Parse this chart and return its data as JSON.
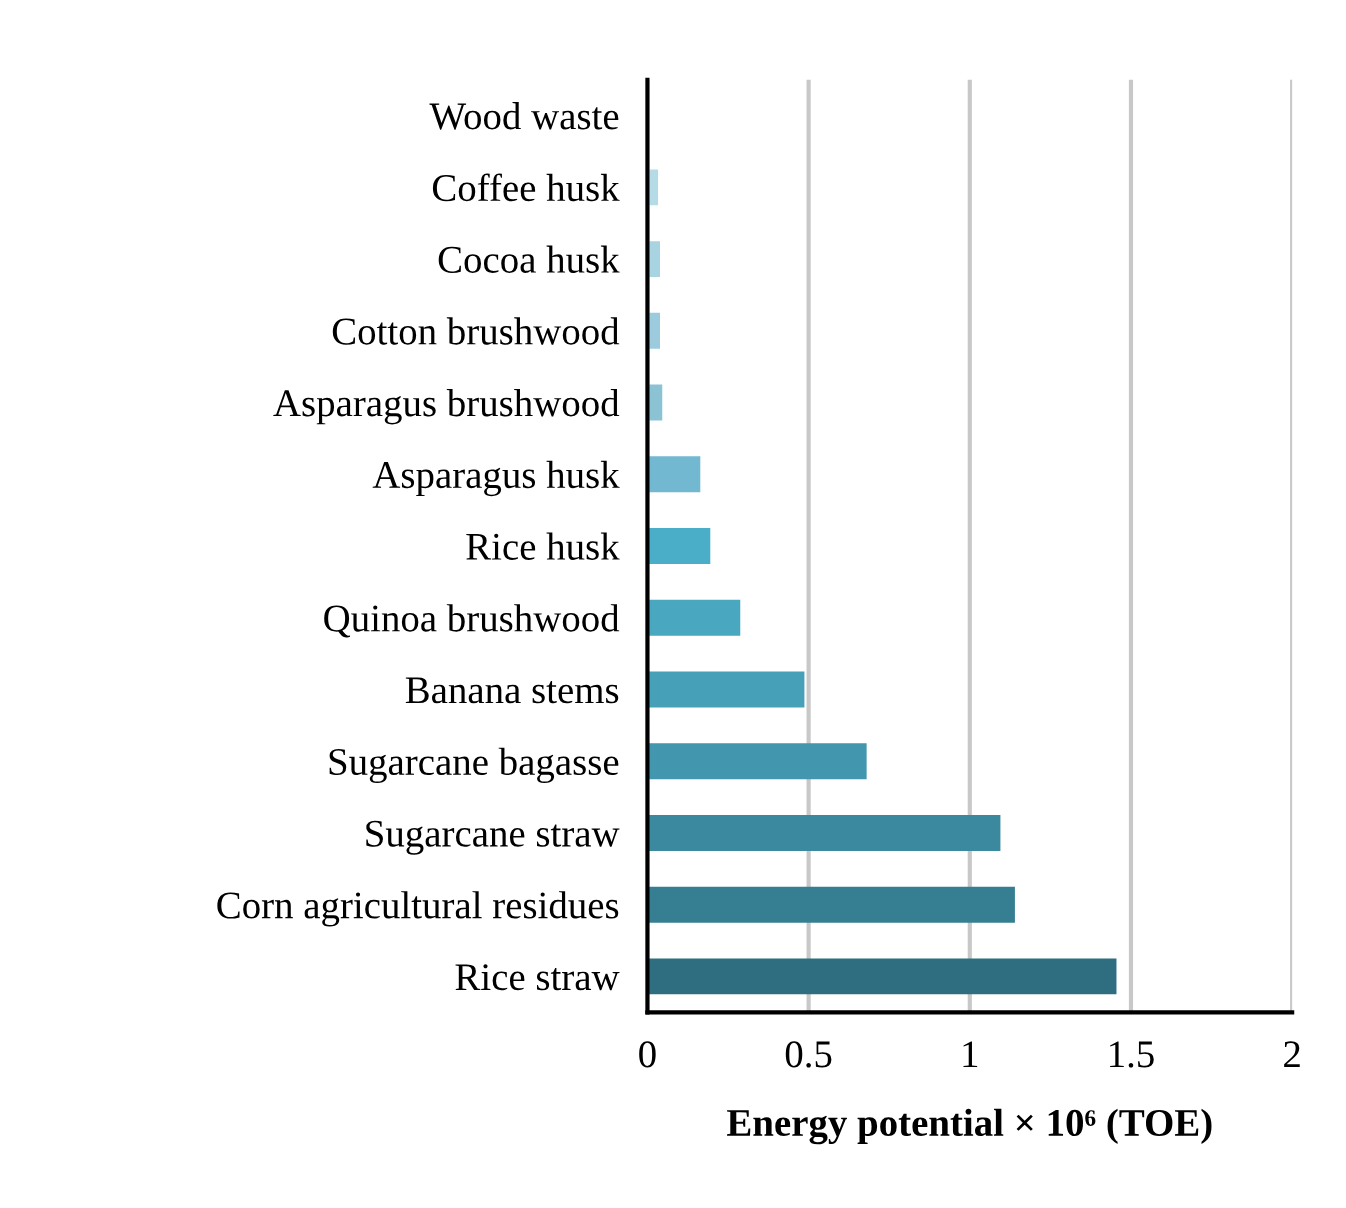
{
  "chart_data": {
    "type": "bar",
    "orientation": "horizontal",
    "xlabel": "Energy potential × 10⁶ (TOE)",
    "categories": [
      "Wood waste",
      "Coffee husk",
      "Cocoa husk",
      "Cotton brushwood",
      "Asparagus brushwood",
      "Asparagus husk",
      "Rice husk",
      "Quinoa brushwood",
      "Banana stems",
      "Sugarcane bagasse",
      "Sugarcane straw",
      "Corn agricultural residues",
      "Rice straw"
    ],
    "values": [
      0,
      0.033,
      0.039,
      0.039,
      0.046,
      0.164,
      0.195,
      0.288,
      0.487,
      0.68,
      1.095,
      1.14,
      1.455
    ],
    "colors": [
      "#c0e0ea",
      "#b5dbe6",
      "#a8d3e0",
      "#9bcbdc",
      "#8bc2d4",
      "#72b8d0",
      "#4aaec8",
      "#49a8bf",
      "#45a0b8",
      "#4296ad",
      "#3b899e",
      "#367f92",
      "#2e6e80"
    ],
    "xlim": [
      0,
      2
    ],
    "xticks": [
      0,
      0.5,
      1,
      1.5,
      2
    ],
    "grid": "x",
    "legend": false
  }
}
